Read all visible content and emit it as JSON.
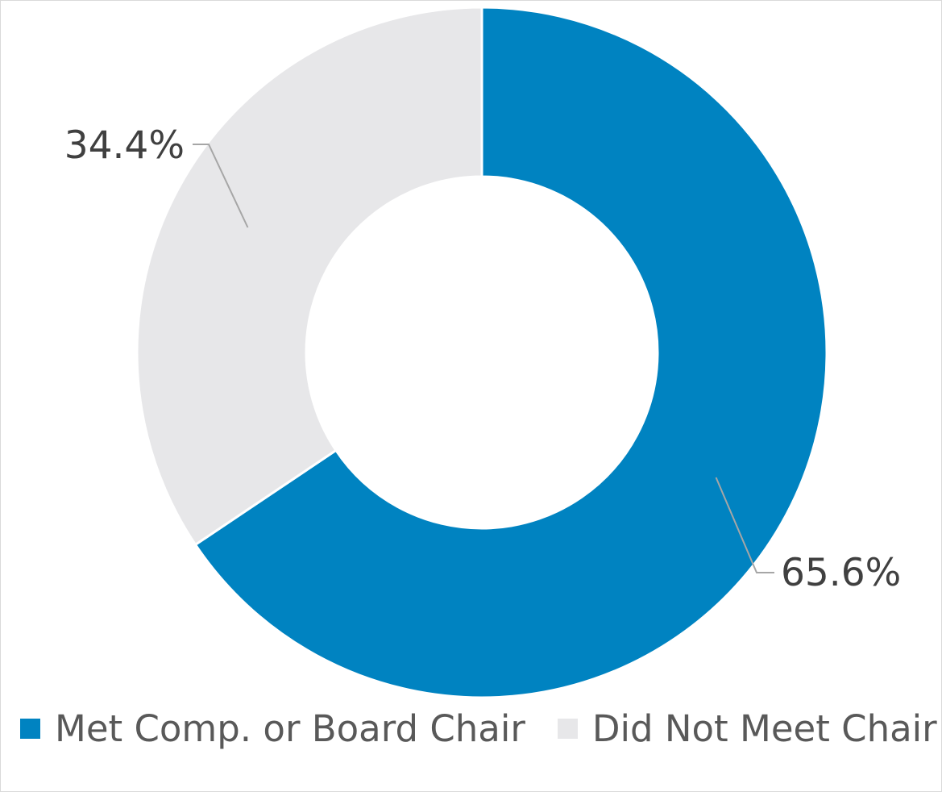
{
  "chart_data": {
    "type": "pie",
    "donut": true,
    "title": "",
    "slices": [
      {
        "name": "Met Comp. or Board Chair",
        "value": 65.6,
        "label": "65.6%",
        "color": "#0083C1"
      },
      {
        "name": "Did Not Meet Chair",
        "value": 34.4,
        "label": "34.4%",
        "color": "#E7E7E9"
      }
    ],
    "legend_position": "bottom",
    "data_labels": "outside-with-leader-lines"
  }
}
